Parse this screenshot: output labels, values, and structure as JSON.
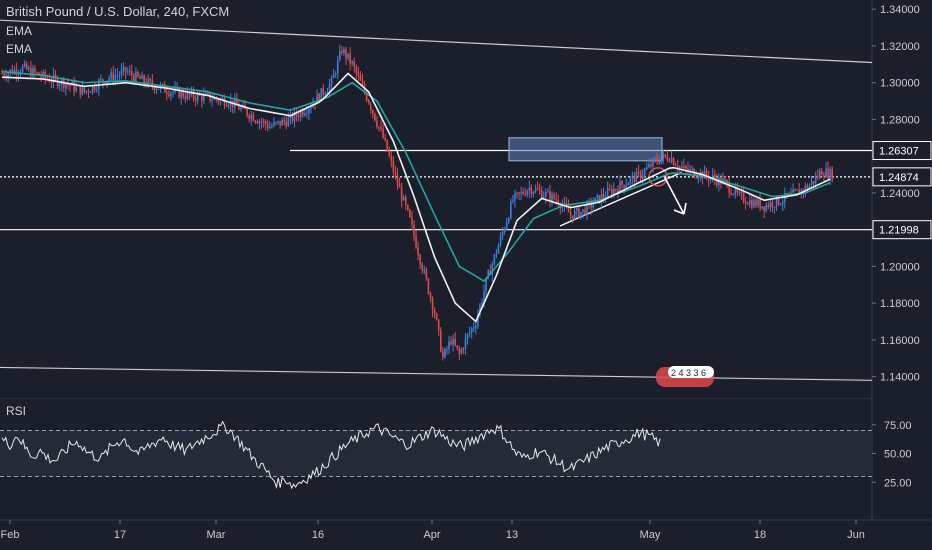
{
  "chart_data": {
    "type": "candlestick",
    "symbol_title": "British Pound / U.S. Dollar, 240, FXCM",
    "indicators": [
      "EMA",
      "EMA"
    ],
    "price_axis": {
      "ylim": [
        1.13,
        1.345
      ],
      "ticks": [
        "1.34000",
        "1.32000",
        "1.30000",
        "1.28000",
        "1.26000",
        "1.24000",
        "1.22000",
        "1.20000",
        "1.18000",
        "1.16000",
        "1.14000"
      ],
      "highlighted_labels": [
        "1.26307",
        "1.24874",
        "1.21998"
      ]
    },
    "time_axis": {
      "ticks": [
        "Feb",
        "17",
        "Mar",
        "16",
        "Apr",
        "13",
        "May",
        "18",
        "Jun"
      ]
    },
    "price_path": [
      [
        0,
        1.305
      ],
      [
        10,
        1.308
      ],
      [
        20,
        1.303
      ],
      [
        30,
        1.3
      ],
      [
        40,
        1.295
      ],
      [
        50,
        1.302
      ],
      [
        60,
        1.306
      ],
      [
        70,
        1.3
      ],
      [
        80,
        1.296
      ],
      [
        90,
        1.293
      ],
      [
        100,
        1.292
      ],
      [
        110,
        1.29
      ],
      [
        120,
        1.283
      ],
      [
        130,
        1.276
      ],
      [
        140,
        1.28
      ],
      [
        150,
        1.288
      ],
      [
        160,
        1.3
      ],
      [
        165,
        1.318
      ],
      [
        170,
        1.31
      ],
      [
        178,
        1.29
      ],
      [
        185,
        1.27
      ],
      [
        192,
        1.245
      ],
      [
        198,
        1.225
      ],
      [
        204,
        1.2
      ],
      [
        210,
        1.175
      ],
      [
        214,
        1.15
      ],
      [
        218,
        1.16
      ],
      [
        222,
        1.152
      ],
      [
        226,
        1.162
      ],
      [
        230,
        1.17
      ],
      [
        236,
        1.195
      ],
      [
        242,
        1.215
      ],
      [
        248,
        1.236
      ],
      [
        256,
        1.243
      ],
      [
        262,
        1.24
      ],
      [
        270,
        1.236
      ],
      [
        276,
        1.228
      ],
      [
        282,
        1.23
      ],
      [
        290,
        1.237
      ],
      [
        300,
        1.244
      ],
      [
        310,
        1.25
      ],
      [
        318,
        1.258
      ],
      [
        324,
        1.26
      ],
      [
        330,
        1.253
      ],
      [
        340,
        1.25
      ],
      [
        350,
        1.246
      ],
      [
        358,
        1.238
      ],
      [
        364,
        1.235
      ],
      [
        370,
        1.233
      ],
      [
        378,
        1.236
      ],
      [
        386,
        1.24
      ],
      [
        392,
        1.244
      ],
      [
        398,
        1.252
      ],
      [
        403,
        1.25
      ]
    ],
    "ema_fast_path": [
      [
        0,
        1.303
      ],
      [
        20,
        1.302
      ],
      [
        40,
        1.298
      ],
      [
        60,
        1.3
      ],
      [
        80,
        1.297
      ],
      [
        100,
        1.293
      ],
      [
        120,
        1.286
      ],
      [
        140,
        1.282
      ],
      [
        155,
        1.29
      ],
      [
        168,
        1.305
      ],
      [
        178,
        1.295
      ],
      [
        190,
        1.268
      ],
      [
        200,
        1.238
      ],
      [
        210,
        1.205
      ],
      [
        220,
        1.18
      ],
      [
        230,
        1.17
      ],
      [
        240,
        1.195
      ],
      [
        250,
        1.225
      ],
      [
        262,
        1.237
      ],
      [
        276,
        1.232
      ],
      [
        290,
        1.235
      ],
      [
        310,
        1.246
      ],
      [
        325,
        1.254
      ],
      [
        340,
        1.25
      ],
      [
        358,
        1.242
      ],
      [
        370,
        1.236
      ],
      [
        386,
        1.239
      ],
      [
        403,
        1.248
      ]
    ],
    "ema_slow_path": [
      [
        0,
        1.306
      ],
      [
        20,
        1.304
      ],
      [
        40,
        1.3
      ],
      [
        60,
        1.301
      ],
      [
        80,
        1.298
      ],
      [
        100,
        1.295
      ],
      [
        120,
        1.289
      ],
      [
        140,
        1.285
      ],
      [
        158,
        1.292
      ],
      [
        170,
        1.3
      ],
      [
        182,
        1.29
      ],
      [
        196,
        1.262
      ],
      [
        210,
        1.228
      ],
      [
        222,
        1.2
      ],
      [
        234,
        1.192
      ],
      [
        246,
        1.208
      ],
      [
        258,
        1.226
      ],
      [
        272,
        1.233
      ],
      [
        290,
        1.236
      ],
      [
        310,
        1.244
      ],
      [
        325,
        1.251
      ],
      [
        342,
        1.249
      ],
      [
        360,
        1.243
      ],
      [
        374,
        1.238
      ],
      [
        390,
        1.24
      ],
      [
        403,
        1.246
      ]
    ],
    "rsi": {
      "label": "RSI",
      "ticks": [
        "75.00",
        "50.00",
        "25.00"
      ],
      "levels": [
        70,
        30
      ],
      "values": [
        62,
        58,
        66,
        55,
        48,
        52,
        46,
        44,
        50,
        58,
        60,
        52,
        48,
        46,
        54,
        60,
        62,
        54,
        50,
        56,
        60,
        64,
        58,
        55,
        52,
        58,
        62,
        66,
        70,
        74,
        68,
        60,
        52,
        44,
        38,
        30,
        24,
        28,
        22,
        26,
        30,
        34,
        40,
        46,
        52,
        58,
        62,
        66,
        70,
        72,
        68,
        64,
        60,
        58,
        62,
        66,
        70,
        68,
        62,
        58,
        56,
        60,
        64,
        68,
        72,
        70,
        60,
        50,
        46,
        50,
        52,
        48,
        44,
        40,
        36,
        40,
        44,
        48,
        52,
        56,
        58,
        62,
        64,
        68,
        66,
        62,
        58
      ]
    },
    "annotations": {
      "resistance_zone": [
        1.2575,
        1.27
      ],
      "horizontal_levels": [
        1.26307,
        1.24874,
        1.21998
      ],
      "channel_top": [
        1.334,
        1.311
      ],
      "channel_bottom": [
        1.145,
        1.138
      ],
      "rising_trendline": [
        1.222,
        1.251
      ],
      "arrow": "down",
      "badge": "2 4 3 3 6"
    }
  }
}
